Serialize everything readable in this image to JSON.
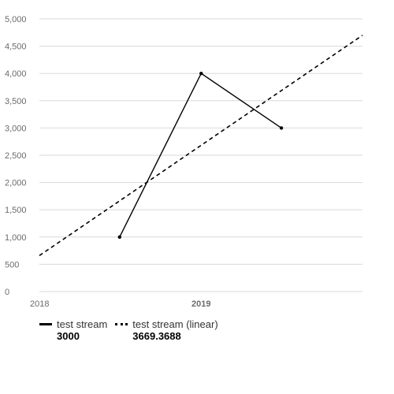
{
  "chart_data": {
    "type": "line",
    "x_ticks": [
      "2018",
      "2019"
    ],
    "y_ticks": [
      "0",
      "500",
      "1,000",
      "1,500",
      "2,000",
      "2,500",
      "3,000",
      "3,500",
      "4,000",
      "4,500",
      "5,000"
    ],
    "ylim": [
      0,
      5000
    ],
    "xlim": [
      "2018-01-01",
      "2019-12-31"
    ],
    "grid": true,
    "legend_position": "bottom-left",
    "series": [
      {
        "name": "test stream",
        "style": "solid",
        "legend_value": "3000",
        "points": [
          {
            "x": "2018-07-01",
            "y": 1000
          },
          {
            "x": "2019-01-01",
            "y": 4000
          },
          {
            "x": "2019-07-01",
            "y": 3000
          }
        ]
      },
      {
        "name": "test stream (linear)",
        "style": "dashed",
        "legend_value": "3669.3688",
        "points": [
          {
            "x": "2018-01-01",
            "y": 660
          },
          {
            "x": "2019-12-31",
            "y": 4700
          }
        ]
      }
    ]
  }
}
